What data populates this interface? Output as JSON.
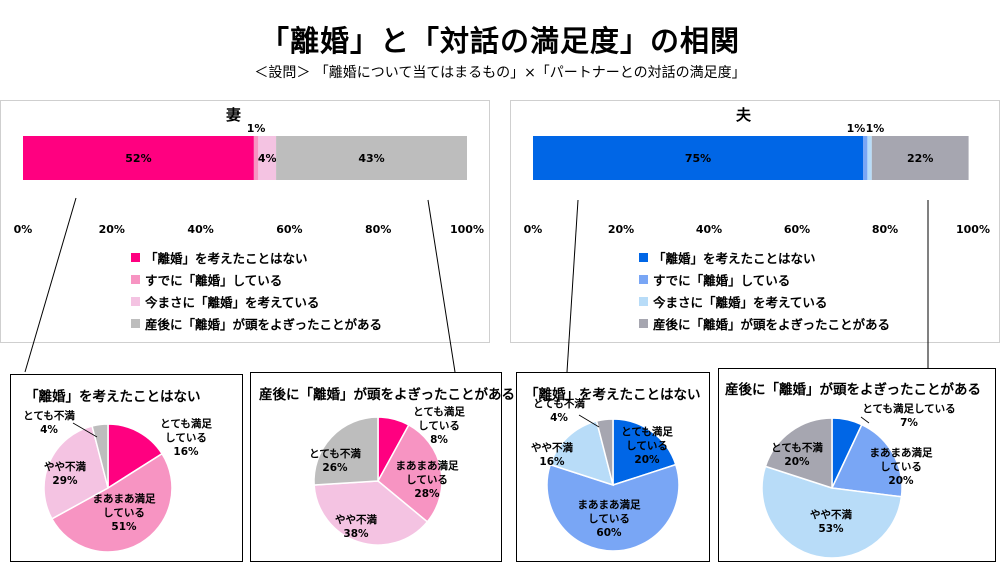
{
  "title": "「離婚」と「対話の満足度」の相関",
  "subtitle": "＜設問＞ 「離婚について当てはまるもの」×「パートナーとの対話の満足度」",
  "axis_ticks": [
    "0%",
    "20%",
    "40%",
    "60%",
    "80%",
    "100%"
  ],
  "legend": [
    "「離婚」を考えたことはない",
    "すでに「離婚」している",
    "今まさに「離婚」を考えている",
    "産後に「離婚」が頭をよぎったことがある"
  ],
  "chart_data": [
    {
      "type": "bar",
      "orientation": "horizontal",
      "stacked": true,
      "title": "妻",
      "categories": [
        "「離婚」を考えたことはない",
        "すでに「離婚」している",
        "今まさに「離婚」を考えている",
        "産後に「離婚」が頭をよぎったことがある"
      ],
      "values": [
        52,
        1,
        4,
        43
      ],
      "labels": [
        "52%",
        "1%",
        "4%",
        "43%"
      ],
      "colors": [
        "#ff0080",
        "#f794c2",
        "#f4c3e2",
        "#bdbdbd"
      ],
      "xlim": [
        0,
        100
      ]
    },
    {
      "type": "bar",
      "orientation": "horizontal",
      "stacked": true,
      "title": "夫",
      "categories": [
        "「離婚」を考えたことはない",
        "すでに「離婚」している",
        "今まさに「離婚」を考えている",
        "産後に「離婚」が頭をよぎったことがある"
      ],
      "values": [
        75,
        1,
        1,
        22
      ],
      "labels": [
        "75%",
        "1%",
        "1%",
        "22%"
      ],
      "colors": [
        "#0066e6",
        "#79a6f5",
        "#b8dcf8",
        "#a6a6b0"
      ],
      "xlim": [
        0,
        100
      ]
    },
    {
      "type": "pie",
      "title": "「離婚」を考えたことはない",
      "slices": [
        {
          "label": "とても満足\nしている",
          "value": 16,
          "pct": "16%",
          "color": "#ff0080"
        },
        {
          "label": "まあまあ満足\nしている",
          "value": 51,
          "pct": "51%",
          "color": "#f794c2"
        },
        {
          "label": "やや不満",
          "value": 29,
          "pct": "29%",
          "color": "#f4c3e2"
        },
        {
          "label": "とても不満",
          "value": 4,
          "pct": "4%",
          "color": "#bdbdbd"
        }
      ]
    },
    {
      "type": "pie",
      "title": "産後に「離婚」が頭をよぎったことがある",
      "slices": [
        {
          "label": "とても満足\nしている",
          "value": 8,
          "pct": "8%",
          "color": "#ff0080"
        },
        {
          "label": "まあまあ満足\nしている",
          "value": 28,
          "pct": "28%",
          "color": "#f794c2"
        },
        {
          "label": "やや不満",
          "value": 38,
          "pct": "38%",
          "color": "#f4c3e2"
        },
        {
          "label": "とても不満",
          "value": 26,
          "pct": "26%",
          "color": "#bdbdbd"
        }
      ]
    },
    {
      "type": "pie",
      "title": "「離婚」を考えたことはない",
      "slices": [
        {
          "label": "とても満足\nしている",
          "value": 20,
          "pct": "20%",
          "color": "#0066e6"
        },
        {
          "label": "まあまあ満足\nしている",
          "value": 60,
          "pct": "60%",
          "color": "#79a6f5"
        },
        {
          "label": "やや不満",
          "value": 16,
          "pct": "16%",
          "color": "#b8dcf8"
        },
        {
          "label": "とても不満",
          "value": 4,
          "pct": "4%",
          "color": "#a6a6b0"
        }
      ]
    },
    {
      "type": "pie",
      "title": "産後に「離婚」が頭をよぎったことがある",
      "slices": [
        {
          "label": "とても満足している",
          "value": 7,
          "pct": "7%",
          "color": "#0066e6"
        },
        {
          "label": "まあまあ満足\nしている",
          "value": 20,
          "pct": "20%",
          "color": "#79a6f5"
        },
        {
          "label": "やや不満",
          "value": 53,
          "pct": "53%",
          "color": "#b8dcf8"
        },
        {
          "label": "とても不満",
          "value": 20,
          "pct": "20%",
          "color": "#a6a6b0"
        }
      ]
    }
  ]
}
